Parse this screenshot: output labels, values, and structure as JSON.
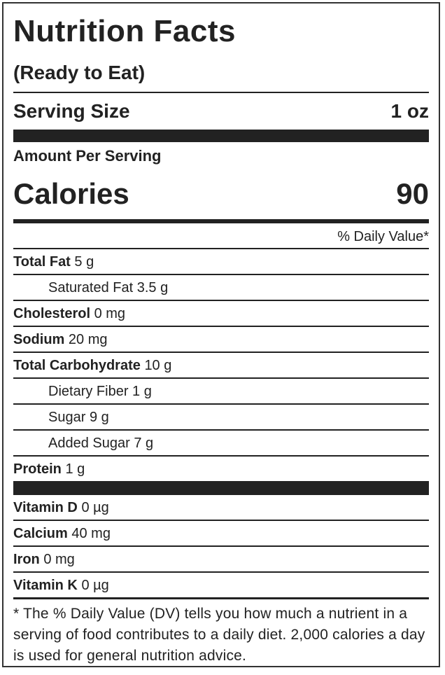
{
  "title": "Nutrition Facts",
  "subtitle": "(Ready to Eat)",
  "serving": {
    "label": "Serving Size",
    "value": "1 oz"
  },
  "amount_per_serving": "Amount Per Serving",
  "calories": {
    "label": "Calories",
    "value": "90"
  },
  "daily_value_header": "% Daily Value*",
  "nutrients": [
    {
      "name": "Total Fat",
      "amount": "5 g",
      "subs": [
        {
          "name": "Saturated Fat",
          "amount": "3.5 g"
        }
      ]
    },
    {
      "name": "Cholesterol",
      "amount": "0 mg"
    },
    {
      "name": "Sodium",
      "amount": "20 mg"
    },
    {
      "name": "Total Carbohydrate",
      "amount": "10 g",
      "subs": [
        {
          "name": "Dietary Fiber",
          "amount": "1 g"
        },
        {
          "name": "Sugar",
          "amount": "9 g"
        },
        {
          "name": "Added Sugar",
          "amount": "7 g"
        }
      ]
    },
    {
      "name": "Protein",
      "amount": "1 g"
    }
  ],
  "vitamins": [
    {
      "name": "Vitamin D",
      "amount": "0 µg"
    },
    {
      "name": "Calcium",
      "amount": "40 mg"
    },
    {
      "name": "Iron",
      "amount": "0 mg"
    },
    {
      "name": "Vitamin K",
      "amount": "0 µg"
    }
  ],
  "footnote": "* The % Daily Value (DV) tells you how much a nutrient in a serving of food contributes to a daily diet. 2,000 calories a day is used for general nutrition advice."
}
